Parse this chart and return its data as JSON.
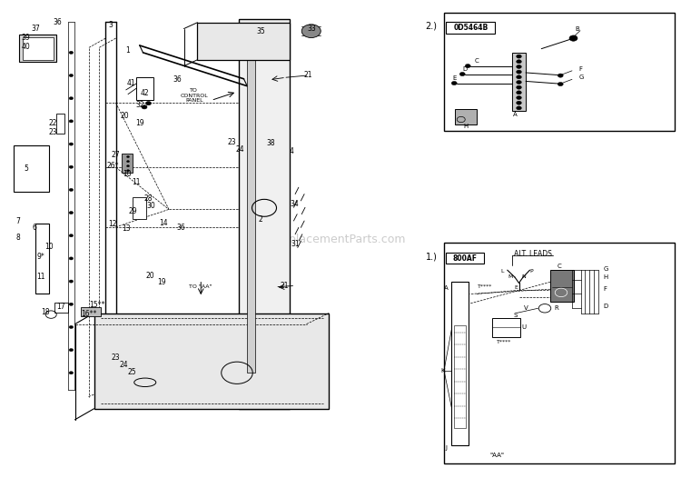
{
  "bg_color": "#ffffff",
  "fig_width": 7.5,
  "fig_height": 5.26,
  "watermark": "ReplacementParts.com",
  "diagram1_ref": "800AF",
  "diagram1_alt": "ALT. LEADS",
  "diagram2_ref": "0D5464B"
}
